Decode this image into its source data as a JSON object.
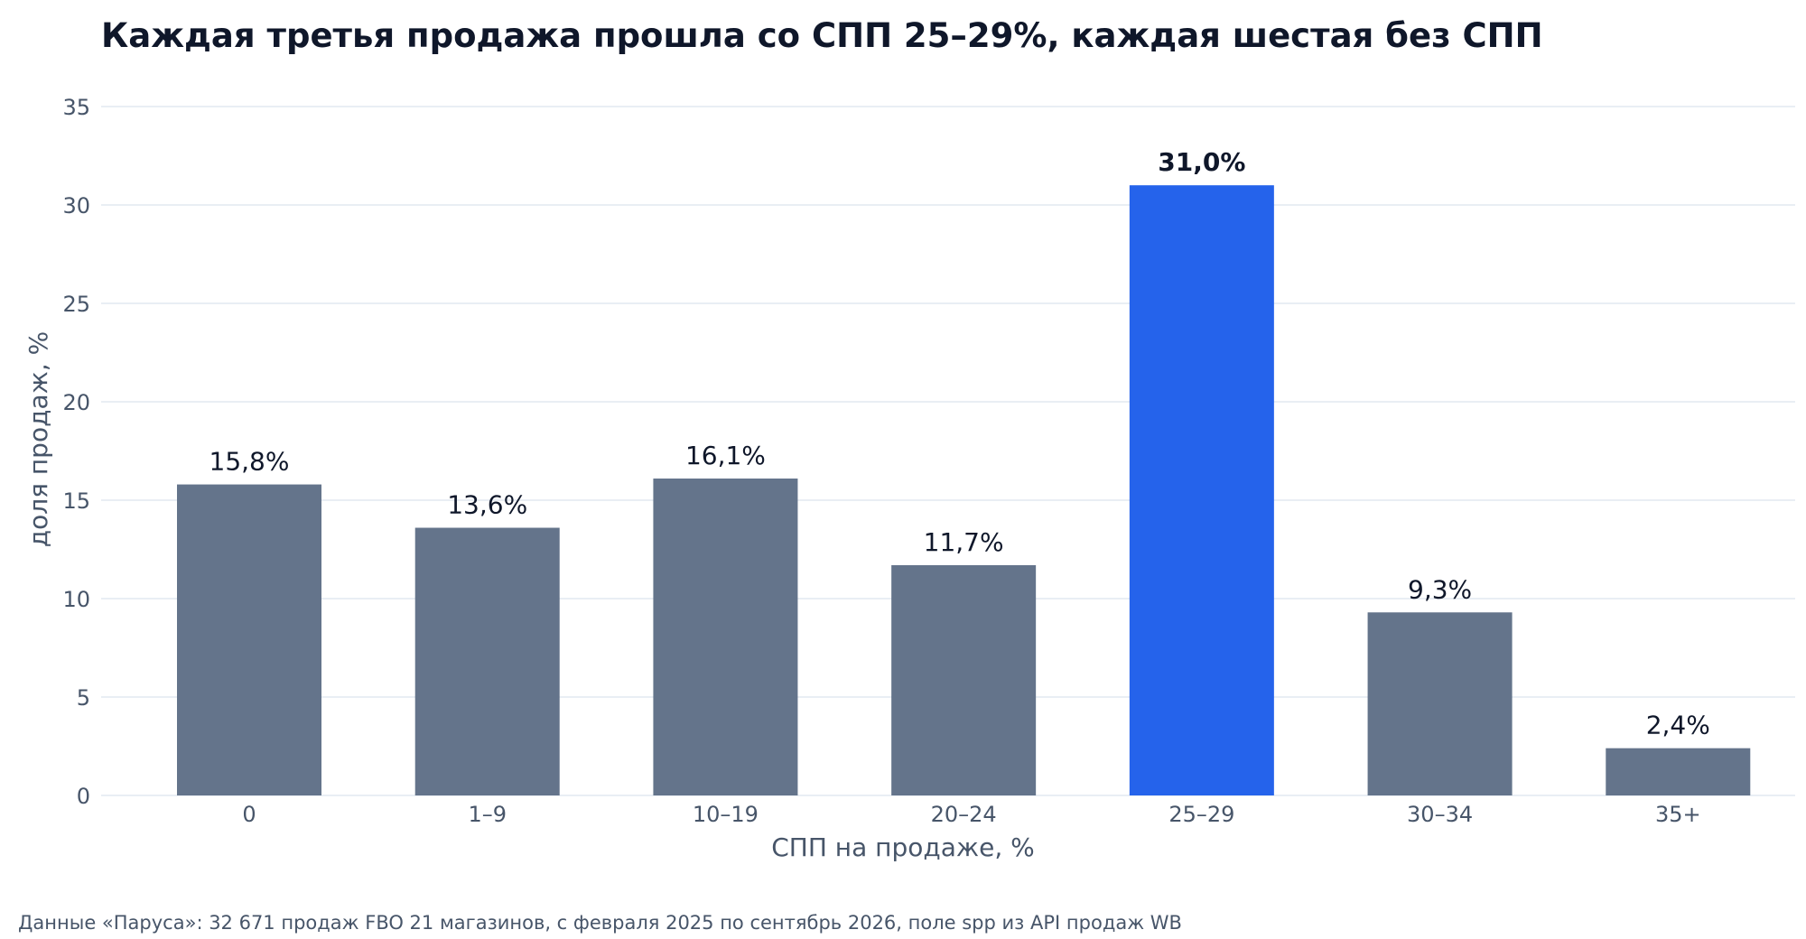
{
  "chart_data": {
    "type": "bar",
    "title": "Каждая третья продажа прошла со СПП 25–29%, каждая шестая без СПП",
    "xlabel": "СПП на продаже, %",
    "ylabel": "доля продаж, %",
    "categories": [
      "0",
      "1–9",
      "10–19",
      "20–24",
      "25–29",
      "30–34",
      "35+"
    ],
    "values": [
      15.8,
      13.6,
      16.1,
      11.7,
      31.0,
      9.3,
      2.4
    ],
    "value_labels": [
      "15,8%",
      "13,6%",
      "16,1%",
      "11,7%",
      "31,0%",
      "9,3%",
      "2,4%"
    ],
    "highlight_index": 4,
    "ylim": [
      0,
      35
    ],
    "yticks": [
      0,
      5,
      10,
      15,
      20,
      25,
      30,
      35
    ],
    "grid": true,
    "colors": {
      "bar": "#64748b",
      "highlight": "#2563eb",
      "grid": "#e2e8f0",
      "text": "#0f172a",
      "muted_text": "#475569"
    }
  },
  "footnote": "Данные «Паруса»: 32 671 продаж FBO 21 магазинов, с февраля 2025 по сентябрь 2026, поле spp из API продаж WB"
}
